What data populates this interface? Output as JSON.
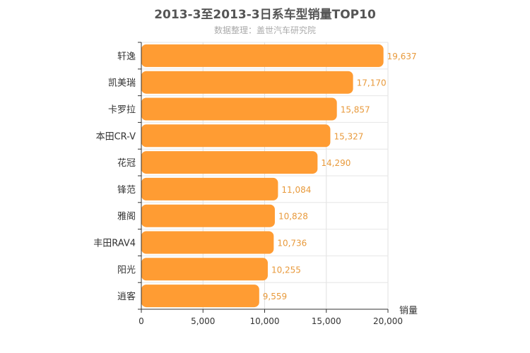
{
  "chart_data": {
    "type": "bar",
    "orientation": "horizontal",
    "title": "2013-3至2013-3日系车型销量TOP10",
    "subtitle": "数据整理：盖世汽车研究院",
    "xlabel": "销量",
    "categories": [
      "轩逸",
      "凯美瑞",
      "卡罗拉",
      "本田CR-V",
      "花冠",
      "锋范",
      "雅阁",
      "丰田RAV4",
      "阳光",
      "逍客"
    ],
    "values": [
      19637,
      17170,
      15857,
      15327,
      14290,
      11084,
      10828,
      10736,
      10255,
      9559
    ],
    "value_labels": [
      "19,637",
      "17,170",
      "15,857",
      "15,327",
      "14,290",
      "11,084",
      "10,828",
      "10,736",
      "10,255",
      "9,559"
    ],
    "xlim": [
      0,
      20000
    ],
    "ticks": [
      "0",
      "5,000",
      "10,000",
      "15,000",
      "20,000"
    ],
    "tick_values": [
      0,
      5000,
      10000,
      15000,
      20000
    ],
    "grid": true,
    "bar_color": "#ff9c33",
    "label_color": "#e89a3c"
  }
}
